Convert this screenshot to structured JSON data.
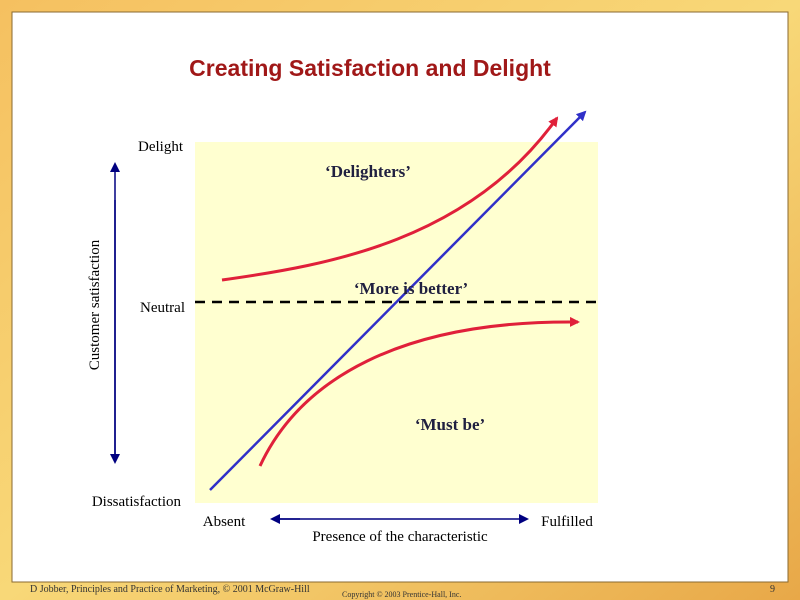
{
  "title": "Creating Satisfaction and Delight",
  "y_axis": {
    "label": "Customer satisfaction",
    "top": "Delight",
    "middle": "Neutral",
    "bottom": "Dissatisfaction"
  },
  "x_axis": {
    "label": "Presence of the characteristic",
    "left": "Absent",
    "right": "Fulfilled"
  },
  "curves": {
    "delighters": "‘Delighters’",
    "more_is_better": "‘More is better’",
    "must_be": "‘Must be’"
  },
  "footer": {
    "source": "D Jobber, Principles and Practice of Marketing, © 2001 McGraw-Hill",
    "copyright": "Copyright © 2003 Prentice-Hall, Inc.",
    "page": "9"
  }
}
